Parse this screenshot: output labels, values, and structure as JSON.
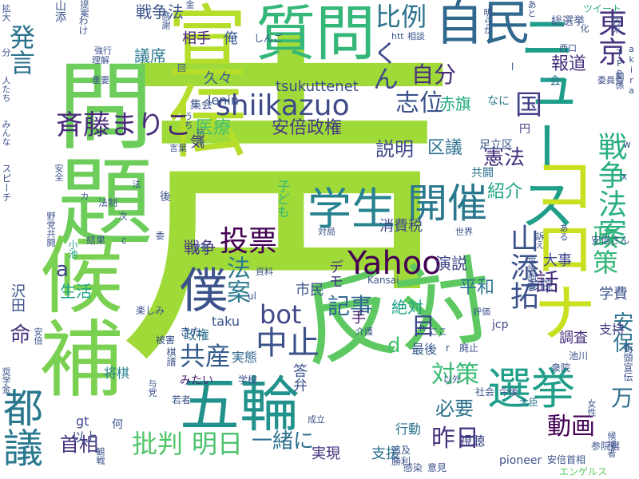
{
  "words": [
    {
      "text": "声",
      "color": "#a0da39"
    },
    {
      "text": "問題",
      "color": "#6ccd5a"
    },
    {
      "text": "候補",
      "color": "#7ad151"
    },
    {
      "text": "宣伝",
      "color": "#b5de2b"
    },
    {
      "text": "反対",
      "color": "#5ec962"
    },
    {
      "text": "質問",
      "color": "#35b779"
    },
    {
      "text": "自民",
      "color": "#31688e"
    },
    {
      "text": "ニュース",
      "color": "#1f9e89"
    },
    {
      "text": "都議",
      "color": "#2a788e"
    },
    {
      "text": "五輪",
      "color": "#21918c"
    },
    {
      "text": "選挙",
      "color": "#1f9e89"
    },
    {
      "text": "コロナ",
      "color": "#c8e020"
    },
    {
      "text": "僕",
      "color": "#3b528b"
    },
    {
      "text": "学生",
      "color": "#26828e"
    },
    {
      "text": "開催",
      "color": "#2a788e"
    },
    {
      "text": "Yahoo",
      "color": "#440154"
    },
    {
      "text": "shiikazuo",
      "color": "#3e4989"
    },
    {
      "text": "斉藤まりこ",
      "color": "#482878"
    },
    {
      "text": "山添拓",
      "color": "#3b528b"
    },
    {
      "text": "戦争法案",
      "color": "#29af7f"
    },
    {
      "text": "政策",
      "color": "#35b779"
    },
    {
      "text": "東京",
      "color": "#46327e"
    },
    {
      "text": "比例",
      "color": "#2c728e"
    },
    {
      "text": "自分",
      "color": "#472d7b"
    },
    {
      "text": "くん",
      "color": "#3e4a89"
    },
    {
      "text": "志位",
      "color": "#3b528b"
    },
    {
      "text": "国",
      "color": "#424086"
    },
    {
      "text": "報道",
      "color": "#46337f"
    },
    {
      "text": "医療",
      "color": "#44bf70"
    },
    {
      "text": "安倍政権",
      "color": "#443983"
    },
    {
      "text": "説明",
      "color": "#3e4989"
    },
    {
      "text": "区議",
      "color": "#2c728e"
    },
    {
      "text": "憲法",
      "color": "#46327e"
    },
    {
      "text": "紹介",
      "color": "#20a486"
    },
    {
      "text": "戦争",
      "color": "#46337f"
    },
    {
      "text": "投票",
      "color": "#440154"
    },
    {
      "text": "法案",
      "color": "#2a788e"
    },
    {
      "text": "bot",
      "color": "#3f4788"
    },
    {
      "text": "記事",
      "color": "#31688e"
    },
    {
      "text": "目",
      "color": "#3e4989"
    },
    {
      "text": "話",
      "color": "#472c7a"
    },
    {
      "text": "中止",
      "color": "#3b528b"
    },
    {
      "text": "共産",
      "color": "#365c8d"
    },
    {
      "text": "批判",
      "color": "#52c569"
    },
    {
      "text": "明日",
      "color": "#4ac16d"
    },
    {
      "text": "昨日",
      "color": "#46327e"
    },
    {
      "text": "動画",
      "color": "#440154"
    },
    {
      "text": "一緒に",
      "color": "#2d708e"
    },
    {
      "text": "首相",
      "color": "#46327e"
    },
    {
      "text": "対策",
      "color": "#3bbb75"
    },
    {
      "text": "必要",
      "color": "#2c728e"
    },
    {
      "text": "安保",
      "color": "#2c728e"
    },
    {
      "text": "万",
      "color": "#2d708e"
    },
    {
      "text": "a",
      "color": "#3f4788"
    },
    {
      "text": "d",
      "color": "#44bf70"
    },
    {
      "text": "命",
      "color": "#46327e"
    },
    {
      "text": "発言",
      "color": "#2c728e"
    },
    {
      "text": "戦争法",
      "color": "#3b528b"
    },
    {
      "text": "相手",
      "color": "#482475"
    },
    {
      "text": "tsukuttenet",
      "color": "#3e4989"
    },
    {
      "text": "議席",
      "color": "#2a788e"
    },
    {
      "text": "久々",
      "color": "#38598c"
    },
    {
      "text": "俺",
      "color": "#38598c"
    },
    {
      "text": "lenin",
      "color": "#3b528b"
    },
    {
      "text": "赤旗",
      "color": "#25ab82"
    },
    {
      "text": "生活",
      "color": "#20a486"
    },
    {
      "text": "デモ",
      "color": "#46337f"
    },
    {
      "text": "市民",
      "color": "#3b528b"
    },
    {
      "text": "平和",
      "color": "#2c728e"
    },
    {
      "text": "演説",
      "color": "#3f4788"
    },
    {
      "text": "絶対",
      "color": "#20a486"
    },
    {
      "text": "消費税",
      "color": "#3e4989"
    },
    {
      "text": "参院",
      "color": "#3b528b"
    },
    {
      "text": "学費",
      "color": "#3b528b"
    },
    {
      "text": "大事",
      "color": "#3e4989"
    },
    {
      "text": "最後",
      "color": "#38598c"
    },
    {
      "text": "実態",
      "color": "#31688e"
    },
    {
      "text": "答弁",
      "color": "#3b528b"
    },
    {
      "text": "調査",
      "color": "#472d7b"
    },
    {
      "text": "支持",
      "color": "#433e85"
    },
    {
      "text": "政権",
      "color": "#2d708e"
    },
    {
      "text": "将棋",
      "color": "#26828e"
    },
    {
      "text": "以上",
      "color": "#3b528b"
    },
    {
      "text": "実現",
      "color": "#46327e"
    },
    {
      "text": "支援",
      "color": "#2c728e"
    },
    {
      "text": "行動",
      "color": "#2c728e"
    },
    {
      "text": "視聴",
      "color": "#3f4788"
    },
    {
      "text": "手",
      "color": "#481f70"
    },
    {
      "text": "子ども",
      "color": "#35b779"
    },
    {
      "text": "共闘",
      "color": "#2d708e"
    },
    {
      "text": "足立区",
      "color": "#38598c"
    },
    {
      "text": "円",
      "color": "#433e85"
    },
    {
      "text": "なに",
      "color": "#2a788e"
    },
    {
      "text": "会",
      "color": "#2c728e"
    },
    {
      "text": "気",
      "color": "#46337f"
    },
    {
      "text": "集会",
      "color": "#3b528b"
    },
    {
      "text": "taku",
      "color": "#3b528b"
    },
    {
      "text": "きた",
      "color": "#38598c"
    },
    {
      "text": "みたい",
      "color": "#481f70"
    },
    {
      "text": "gt",
      "color": "#3e4989"
    },
    {
      "text": "何",
      "color": "#3b528b"
    },
    {
      "text": "pioneer",
      "color": "#3b528b"
    },
    {
      "text": "安倍首相",
      "color": "#3b528b"
    },
    {
      "text": "エンゲルス",
      "color": "#5ec962"
    },
    {
      "text": "沢田",
      "color": "#3b528b"
    },
    {
      "text": "山添",
      "color": "#3b528b"
    },
    {
      "text": "総選挙",
      "color": "#3b528b"
    },
    {
      "text": "ツイート",
      "color": "#29af7f"
    },
    {
      "text": "jcp",
      "color": "#3f4788"
    },
    {
      "text": "h",
      "color": "#3f4788"
    },
    {
      "text": "Kansai",
      "color": "#3b528b"
    },
    {
      "text": "結果",
      "color": "#3b528b"
    },
    {
      "text": "小池",
      "color": "#1f9e89"
    },
    {
      "text": "楽しみ",
      "color": "#3b528b"
    },
    {
      "text": "被害",
      "color": "#3b528b"
    },
    {
      "text": "学校",
      "color": "#3b528b"
    },
    {
      "text": "若者",
      "color": "#3b528b"
    },
    {
      "text": "廃止",
      "color": "#3b528b"
    },
    {
      "text": "社会",
      "color": "#3b528b"
    },
    {
      "text": "今後",
      "color": "#3b528b"
    },
    {
      "text": "大臣",
      "color": "#2c728e"
    },
    {
      "text": "勝利",
      "color": "#3b528b"
    },
    {
      "text": "感染",
      "color": "#3b528b"
    },
    {
      "text": "意見",
      "color": "#3b528b"
    },
    {
      "text": "追及",
      "color": "#3b528b"
    },
    {
      "text": "参院選",
      "color": "#3b528b"
    },
    {
      "text": "衆院",
      "color": "#3b528b"
    },
    {
      "text": "街頭宣伝",
      "color": "#3b528b"
    },
    {
      "text": "池川",
      "color": "#3b528b"
    },
    {
      "text": "評価",
      "color": "#3b528b"
    },
    {
      "text": "ここ",
      "color": "#3b528b"
    },
    {
      "text": "以外",
      "color": "#3b528b"
    },
    {
      "text": "棋譜",
      "color": "#3b528b"
    },
    {
      "text": "改憲",
      "color": "#3b528b"
    },
    {
      "text": "資料",
      "color": "#3b528b"
    },
    {
      "text": "委",
      "color": "#3b528b"
    },
    {
      "text": "対局",
      "color": "#3b528b"
    },
    {
      "text": "世界",
      "color": "#3b528b"
    },
    {
      "text": "法制",
      "color": "#3b528b"
    },
    {
      "text": "後",
      "color": "#3b528b"
    },
    {
      "text": "法",
      "color": "#3b528b"
    },
    {
      "text": "言葉",
      "color": "#3b528b"
    },
    {
      "text": "うち",
      "color": "#3b528b"
    },
    {
      "text": "抗議",
      "color": "#3b528b"
    },
    {
      "text": "西口",
      "color": "#3b528b"
    },
    {
      "text": "理解",
      "color": "#3b528b"
    },
    {
      "text": "強行",
      "color": "#3b528b"
    },
    {
      "text": "わけ",
      "color": "#3b528b"
    },
    {
      "text": "重要",
      "color": "#3b528b"
    },
    {
      "text": "回",
      "color": "#3b528b"
    },
    {
      "text": "感謝",
      "color": "#3b528b"
    },
    {
      "text": "明らか",
      "color": "#3b528b"
    },
    {
      "text": "htt",
      "color": "#3b528b"
    },
    {
      "text": "相談",
      "color": "#3b528b"
    },
    {
      "text": "委員会",
      "color": "#3b528b"
    },
    {
      "text": "TPP",
      "color": "#3b528b"
    },
    {
      "text": "akira",
      "color": "#3b528b"
    },
    {
      "text": "提案",
      "color": "#3b528b"
    },
    {
      "text": "金",
      "color": "#3b528b"
    },
    {
      "text": "拡大",
      "color": "#3b528b"
    },
    {
      "text": "分",
      "color": "#3b528b"
    },
    {
      "text": "人たち",
      "color": "#3b528b"
    },
    {
      "text": "みんな",
      "color": "#3b528b"
    },
    {
      "text": "スピーチ",
      "color": "#3b528b"
    },
    {
      "text": "野党共闘",
      "color": "#3b528b"
    },
    {
      "text": "安全",
      "color": "#3b528b"
    },
    {
      "text": "奨学金",
      "color": "#3b528b"
    },
    {
      "text": "安倍",
      "color": "#3b528b"
    },
    {
      "text": "観戦",
      "color": "#3b528b"
    },
    {
      "text": "与党",
      "color": "#3b528b"
    },
    {
      "text": "病床",
      "color": "#3b528b"
    },
    {
      "text": "世論調査",
      "color": "#3b528b"
    },
    {
      "text": "関係",
      "color": "#3b528b"
    },
    {
      "text": "しんご",
      "color": "#3b528b"
    },
    {
      "text": "安倍さん",
      "color": "#3b528b"
    },
    {
      "text": "ul",
      "color": "#3b528b"
    },
    {
      "text": "r",
      "color": "#3b528b"
    },
    {
      "text": "l",
      "color": "#3b528b"
    },
    {
      "text": "w",
      "color": "#3b528b"
    },
    {
      "text": "x",
      "color": "#3b528b"
    },
    {
      "text": "c",
      "color": "#3b528b"
    },
    {
      "text": "カ",
      "color": "#3b528b"
    },
    {
      "text": "次",
      "color": "#3b528b"
    },
    {
      "text": "女性",
      "color": "#3b528b"
    },
    {
      "text": "成立",
      "color": "#3b528b"
    },
    {
      "text": "介護",
      "color": "#3b528b"
    },
    {
      "text": "化",
      "color": "#3b528b"
    },
    {
      "text": "訴え",
      "color": "#3b528b"
    },
    {
      "text": "ある",
      "color": "#3b528b"
    },
    {
      "text": "あと",
      "color": "#3b528b"
    },
    {
      "text": "候補者",
      "color": "#3b528b"
    },
    {
      "text": "都議選",
      "color": "#3b528b"
    },
    {
      "text": "票",
      "color": "#3b528b"
    },
    {
      "text": "連携",
      "color": "#3b528b"
    }
  ]
}
